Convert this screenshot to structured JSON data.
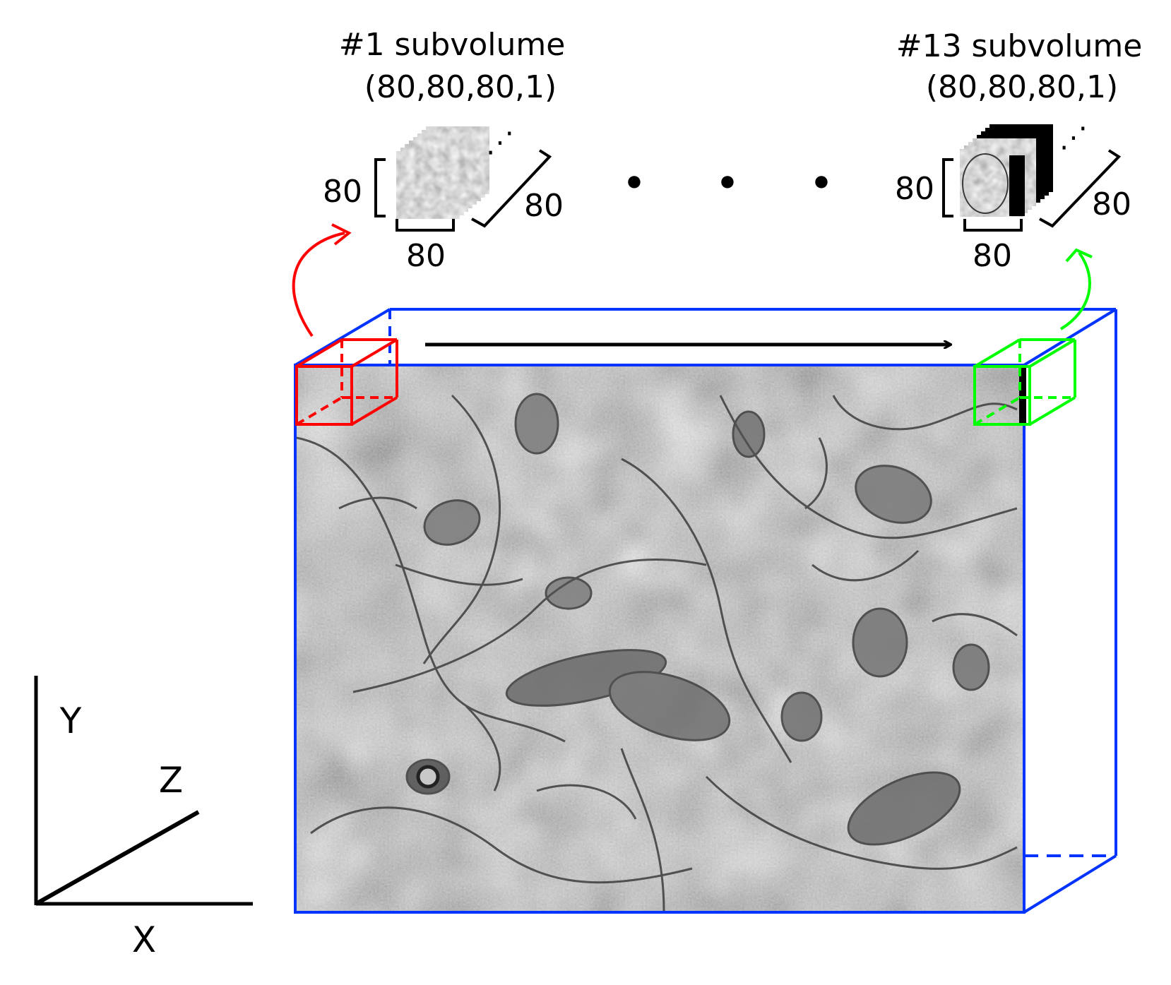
{
  "subvolumes": [
    {
      "title": "#1 subvolume",
      "shape": "(80,80,80,1)",
      "width": "80",
      "height": "80",
      "depth": "80",
      "color": "#ff0000",
      "slice_ellipsis": "⋰"
    },
    {
      "title": "#13 subvolume",
      "shape": "(80,80,80,1)",
      "width": "80",
      "height": "80",
      "depth": "80",
      "color": "#00ff00",
      "slice_ellipsis": "⋰"
    }
  ],
  "sequence_dots": [
    "•",
    "•",
    "•"
  ],
  "volume": {
    "outline_color": "#0033ff",
    "scan_direction": "left-to-right"
  },
  "axes": {
    "y": "Y",
    "z": "Z",
    "x": "X"
  }
}
